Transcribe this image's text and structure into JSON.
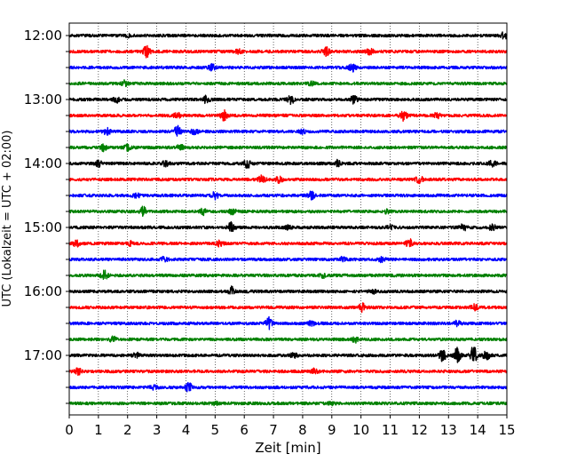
{
  "chart_data": {
    "type": "line",
    "title": "",
    "xlabel": "Zeit  [min]",
    "ylabel": "UTC (Lokalzeit = UTC + 02:00)",
    "xlim": [
      0,
      15
    ],
    "x_ticks": [
      0,
      1,
      2,
      3,
      4,
      5,
      6,
      7,
      8,
      9,
      10,
      11,
      12,
      13,
      14,
      15
    ],
    "x_tick_labels": [
      "0",
      "1",
      "2",
      "3",
      "4",
      "5",
      "6",
      "7",
      "8",
      "9",
      "10",
      "11",
      "12",
      "13",
      "14",
      "15"
    ],
    "y_tick_labels": [
      "12:00",
      "13:00",
      "14:00",
      "15:00",
      "16:00",
      "17:00"
    ],
    "grid": "vertical dotted",
    "trace_colors": [
      "#000000",
      "#ff0000",
      "#0000ff",
      "#008000"
    ],
    "series": [
      {
        "start": "12:00",
        "color": "#000000",
        "events": [
          [
            2.0,
            0.15
          ],
          [
            14.9,
            0.35
          ]
        ]
      },
      {
        "start": "12:15",
        "color": "#ff0000",
        "events": [
          [
            2.65,
            0.6
          ],
          [
            5.8,
            0.2
          ],
          [
            8.8,
            0.45
          ],
          [
            10.3,
            0.35
          ]
        ]
      },
      {
        "start": "12:30",
        "color": "#0000ff",
        "events": [
          [
            4.9,
            0.3
          ],
          [
            9.7,
            0.4
          ]
        ]
      },
      {
        "start": "12:45",
        "color": "#008000",
        "events": [
          [
            1.9,
            0.3
          ],
          [
            8.3,
            0.2
          ]
        ]
      },
      {
        "start": "13:00",
        "color": "#000000",
        "events": [
          [
            1.6,
            0.3
          ],
          [
            4.7,
            0.4
          ],
          [
            7.6,
            0.45
          ],
          [
            9.75,
            0.4
          ]
        ]
      },
      {
        "start": "13:15",
        "color": "#ff0000",
        "events": [
          [
            3.7,
            0.25
          ],
          [
            5.3,
            0.5
          ],
          [
            11.45,
            0.55
          ],
          [
            12.6,
            0.35
          ]
        ]
      },
      {
        "start": "13:30",
        "color": "#0000ff",
        "events": [
          [
            1.3,
            0.4
          ],
          [
            3.7,
            0.55
          ],
          [
            4.3,
            0.3
          ],
          [
            8.0,
            0.2
          ]
        ]
      },
      {
        "start": "13:45",
        "color": "#008000",
        "events": [
          [
            1.2,
            0.4
          ],
          [
            2.0,
            0.3
          ],
          [
            3.8,
            0.3
          ]
        ]
      },
      {
        "start": "14:00",
        "color": "#000000",
        "events": [
          [
            1.0,
            0.3
          ],
          [
            3.3,
            0.25
          ],
          [
            6.1,
            0.45
          ],
          [
            9.2,
            0.3
          ],
          [
            14.5,
            0.3
          ]
        ]
      },
      {
        "start": "14:15",
        "color": "#ff0000",
        "events": [
          [
            6.6,
            0.4
          ],
          [
            7.2,
            0.35
          ],
          [
            12.0,
            0.45
          ]
        ]
      },
      {
        "start": "14:30",
        "color": "#0000ff",
        "events": [
          [
            2.3,
            0.2
          ],
          [
            5.0,
            0.35
          ],
          [
            8.3,
            0.4
          ]
        ]
      },
      {
        "start": "14:45",
        "color": "#008000",
        "events": [
          [
            2.55,
            0.5
          ],
          [
            4.6,
            0.35
          ],
          [
            5.6,
            0.3
          ],
          [
            10.9,
            0.2
          ]
        ]
      },
      {
        "start": "15:00",
        "color": "#000000",
        "events": [
          [
            5.55,
            0.5
          ],
          [
            7.5,
            0.2
          ],
          [
            11.0,
            0.2
          ],
          [
            13.5,
            0.35
          ],
          [
            14.5,
            0.3
          ]
        ]
      },
      {
        "start": "15:15",
        "color": "#ff0000",
        "events": [
          [
            0.25,
            0.3
          ],
          [
            2.1,
            0.2
          ],
          [
            5.15,
            0.3
          ],
          [
            11.65,
            0.45
          ]
        ]
      },
      {
        "start": "15:30",
        "color": "#0000ff",
        "events": [
          [
            3.25,
            0.3
          ],
          [
            9.35,
            0.2
          ],
          [
            10.7,
            0.25
          ]
        ]
      },
      {
        "start": "15:45",
        "color": "#008000",
        "events": [
          [
            1.2,
            0.5
          ],
          [
            8.7,
            0.2
          ]
        ]
      },
      {
        "start": "16:00",
        "color": "#000000",
        "events": [
          [
            5.55,
            0.45
          ],
          [
            10.4,
            0.2
          ]
        ]
      },
      {
        "start": "16:15",
        "color": "#ff0000",
        "events": [
          [
            10.05,
            0.45
          ],
          [
            13.9,
            0.3
          ]
        ]
      },
      {
        "start": "16:30",
        "color": "#0000ff",
        "events": [
          [
            6.85,
            0.6
          ],
          [
            8.3,
            0.2
          ],
          [
            13.3,
            0.25
          ]
        ]
      },
      {
        "start": "16:45",
        "color": "#008000",
        "events": [
          [
            1.5,
            0.25
          ],
          [
            9.8,
            0.3
          ]
        ]
      },
      {
        "start": "17:00",
        "color": "#000000",
        "events": [
          [
            2.3,
            0.3
          ],
          [
            7.7,
            0.25
          ],
          [
            12.8,
            0.6
          ],
          [
            13.3,
            0.8
          ],
          [
            13.85,
            1.0
          ],
          [
            14.3,
            0.5
          ]
        ]
      },
      {
        "start": "17:15",
        "color": "#ff0000",
        "events": [
          [
            0.3,
            0.3
          ],
          [
            8.4,
            0.25
          ]
        ]
      },
      {
        "start": "17:30",
        "color": "#0000ff",
        "events": [
          [
            4.1,
            0.45
          ],
          [
            2.9,
            0.2
          ]
        ]
      },
      {
        "start": "17:45",
        "color": "#008000",
        "events": [
          [
            5.0,
            0.15
          ],
          [
            9.0,
            0.15
          ]
        ]
      }
    ]
  }
}
